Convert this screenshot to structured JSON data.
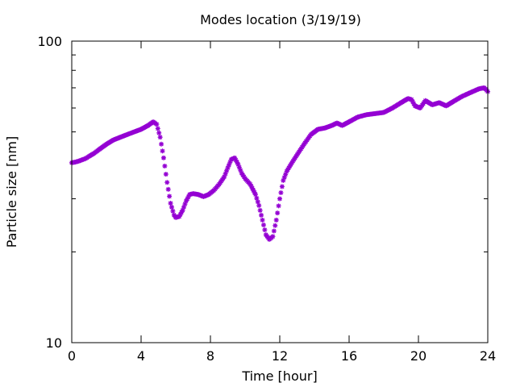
{
  "chart_data": {
    "type": "scatter",
    "title": "Modes location (3/19/19)",
    "xlabel": "Time [hour]",
    "ylabel": "Particle size [nm]",
    "xlim": [
      0,
      24
    ],
    "ylim": [
      10,
      100
    ],
    "yscale": "log",
    "xticks": [
      0,
      4,
      8,
      12,
      16,
      20,
      24
    ],
    "xtick_labels": [
      "0",
      "4",
      "8",
      "12",
      "16",
      "20",
      "24"
    ],
    "yticks": [
      10,
      100
    ],
    "ytick_labels": [
      "10",
      "100"
    ],
    "grid": false,
    "marker": "star",
    "color": "#9400d3",
    "series": [
      {
        "x": [
          0.0,
          0.2,
          0.4,
          0.6,
          0.8,
          1.0,
          1.3,
          1.6,
          2.0,
          2.4,
          2.8,
          3.2,
          3.6,
          4.0,
          4.4,
          4.7,
          4.9,
          5.1,
          5.3,
          5.5,
          5.7,
          5.9,
          6.0,
          6.2,
          6.4,
          6.6,
          6.8,
          7.0,
          7.3,
          7.6,
          7.9,
          8.2,
          8.5,
          8.8,
          9.0,
          9.2,
          9.4,
          9.6,
          9.8,
          10.0,
          10.3,
          10.6,
          10.8,
          11.0,
          11.2,
          11.4,
          11.6,
          11.8,
          12.0,
          12.2,
          12.4,
          12.7,
          13.0,
          13.4,
          13.8,
          14.2,
          14.6,
          15.0,
          15.3,
          15.6,
          16.0,
          16.5,
          17.0,
          17.5,
          18.0,
          18.5,
          19.0,
          19.4,
          19.6,
          19.8,
          20.1,
          20.4,
          20.8,
          21.2,
          21.6,
          22.0,
          22.5,
          23.0,
          23.5,
          23.8,
          24.0
        ],
        "y": [
          39.5,
          39.7,
          40.0,
          40.4,
          40.8,
          41.5,
          42.5,
          43.8,
          45.5,
          47.0,
          48.0,
          49.0,
          50.0,
          51.0,
          52.5,
          54.0,
          53.0,
          48.0,
          41.0,
          34.0,
          29.0,
          26.5,
          26.0,
          26.2,
          27.5,
          29.5,
          31.0,
          31.2,
          31.0,
          30.5,
          31.0,
          32.0,
          33.5,
          35.5,
          38.0,
          40.5,
          41.0,
          39.0,
          36.5,
          35.0,
          33.5,
          31.0,
          28.5,
          25.5,
          22.8,
          22.0,
          22.5,
          25.5,
          30.0,
          34.5,
          37.0,
          39.5,
          42.0,
          45.5,
          49.0,
          51.0,
          51.5,
          52.5,
          53.5,
          52.5,
          54.0,
          56.0,
          57.0,
          57.5,
          58.0,
          60.0,
          62.5,
          64.5,
          64.0,
          61.0,
          60.0,
          63.5,
          61.5,
          62.5,
          61.0,
          63.0,
          65.5,
          67.5,
          69.5,
          70.0,
          68.0
        ]
      }
    ]
  }
}
